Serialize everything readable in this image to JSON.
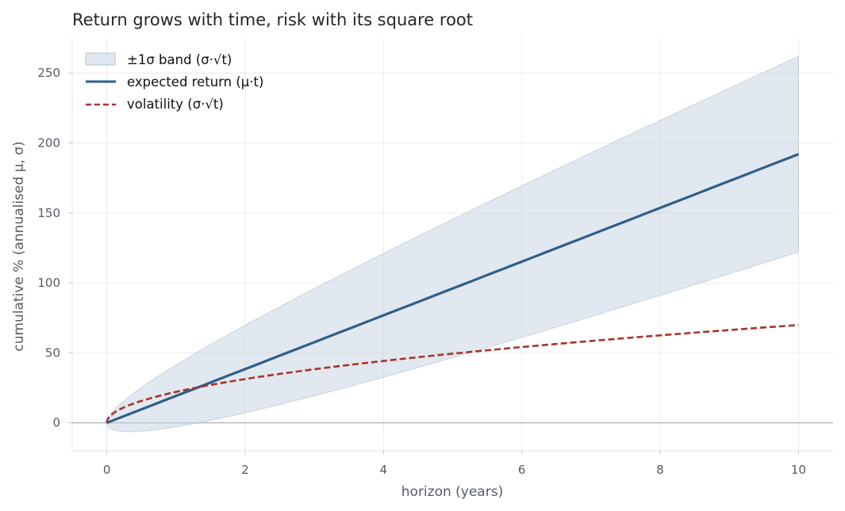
{
  "chart_data": {
    "type": "line",
    "title": "Return grows with time, risk with its square root",
    "xlabel": "horizon (years)",
    "ylabel": "cumulative % (annualised μ, σ)",
    "xlim": [
      -0.5,
      10.5
    ],
    "ylim": [
      -20,
      275
    ],
    "x_ticks": [
      0,
      2,
      4,
      6,
      8,
      10
    ],
    "y_ticks": [
      0,
      50,
      100,
      150,
      200,
      250
    ],
    "grid": true,
    "legend_position": "upper-left",
    "params": {
      "mu": 19.2,
      "sigma": 22.1,
      "t_max": 10
    },
    "band": {
      "name": "±1σ band  (σ·√t)",
      "color": "#c6d1e0",
      "upper_at_10": 262,
      "lower_at_10": 122,
      "min": -6
    },
    "series": [
      {
        "name": "expected return  (μ·t)",
        "color": "#2e5f8a",
        "style": "solid",
        "x": [
          0,
          2,
          4,
          6,
          8,
          10
        ],
        "y": [
          0,
          38.4,
          76.8,
          115.2,
          153.6,
          192
        ]
      },
      {
        "name": "volatility  (σ·√t)",
        "color": "#a8342b",
        "style": "dashed",
        "x": [
          0,
          1,
          2,
          4,
          6,
          8,
          10
        ],
        "y": [
          0,
          22.1,
          31.3,
          44.2,
          54.1,
          62.5,
          69.9
        ]
      }
    ],
    "zero_line": 0
  }
}
